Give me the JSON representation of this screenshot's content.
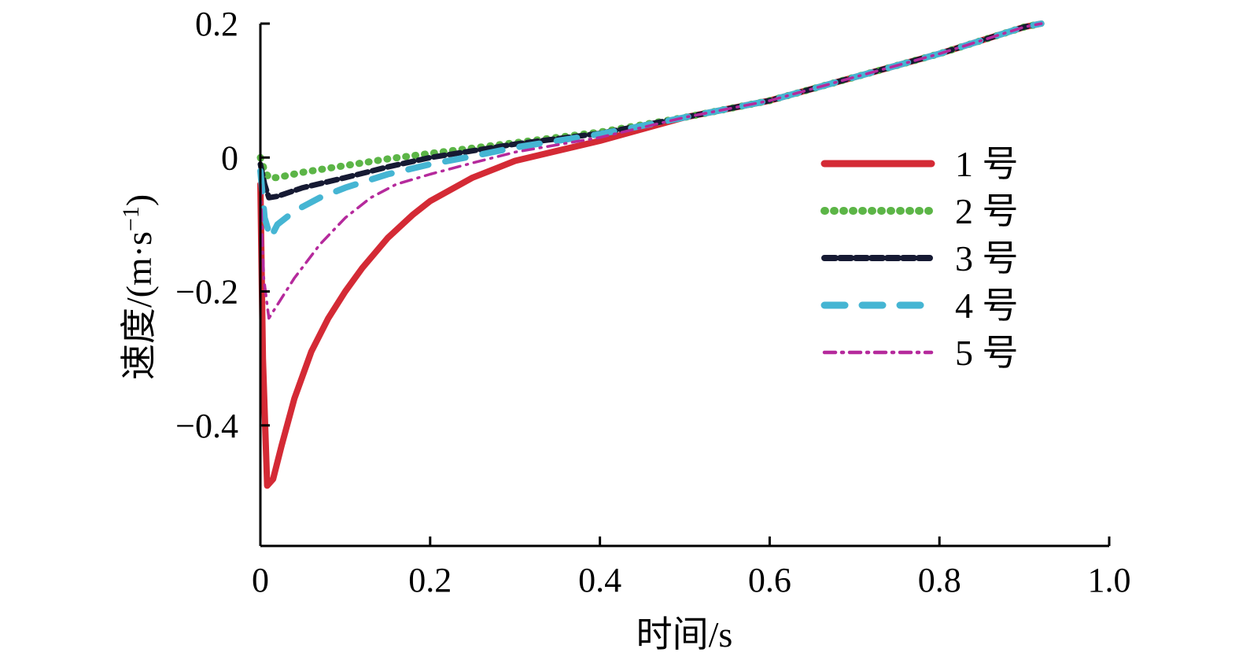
{
  "chart_data": {
    "type": "line",
    "title": "",
    "xlabel": "时间/s",
    "ylabel": "速度/(m·s",
    "ylabel_sup": "−1",
    "ylabel_close": ")",
    "xlim": [
      0,
      1.0
    ],
    "ylim": [
      -0.58,
      0.2
    ],
    "xticks": [
      0,
      0.2,
      0.4,
      0.6,
      0.8,
      1.0
    ],
    "xtick_labels": [
      "0",
      "0.2",
      "0.4",
      "0.6",
      "0.8",
      "1.0"
    ],
    "yticks": [
      -0.4,
      -0.2,
      0,
      0.2
    ],
    "ytick_labels": [
      "−0.4",
      "−0.2",
      "0",
      "0.2"
    ],
    "grid": false,
    "legend_position": "right",
    "series": [
      {
        "name": "1 号",
        "color": "#d42a35",
        "style": "solid",
        "x": [
          0,
          0.003,
          0.008,
          0.015,
          0.025,
          0.04,
          0.06,
          0.08,
          0.1,
          0.12,
          0.15,
          0.18,
          0.2,
          0.25,
          0.3,
          0.35,
          0.4,
          0.5,
          0.6,
          0.7,
          0.8,
          0.9,
          0.92
        ],
        "y": [
          -0.04,
          -0.3,
          -0.49,
          -0.48,
          -0.43,
          -0.36,
          -0.29,
          -0.24,
          -0.2,
          -0.165,
          -0.12,
          -0.085,
          -0.065,
          -0.03,
          -0.005,
          0.01,
          0.025,
          0.06,
          0.085,
          0.12,
          0.155,
          0.195,
          0.2
        ]
      },
      {
        "name": "2 号",
        "color": "#5cb547",
        "style": "dotted",
        "x": [
          0,
          0.005,
          0.01,
          0.02,
          0.05,
          0.1,
          0.15,
          0.2,
          0.25,
          0.3,
          0.4,
          0.5,
          0.6,
          0.7,
          0.8,
          0.9,
          0.92
        ],
        "y": [
          0,
          -0.02,
          -0.03,
          -0.03,
          -0.022,
          -0.012,
          -0.002,
          0.006,
          0.014,
          0.022,
          0.038,
          0.06,
          0.085,
          0.12,
          0.155,
          0.195,
          0.2
        ]
      },
      {
        "name": "3 号",
        "color": "#161a33",
        "style": "dashed",
        "x": [
          0,
          0.005,
          0.01,
          0.02,
          0.05,
          0.1,
          0.15,
          0.2,
          0.25,
          0.3,
          0.4,
          0.5,
          0.6,
          0.7,
          0.8,
          0.9,
          0.92
        ],
        "y": [
          -0.01,
          -0.04,
          -0.06,
          -0.058,
          -0.045,
          -0.03,
          -0.014,
          0,
          0.01,
          0.02,
          0.036,
          0.06,
          0.085,
          0.12,
          0.155,
          0.195,
          0.2
        ]
      },
      {
        "name": "4 号",
        "color": "#45b5d3",
        "style": "long-dash",
        "x": [
          0,
          0.005,
          0.012,
          0.02,
          0.04,
          0.07,
          0.1,
          0.15,
          0.2,
          0.25,
          0.3,
          0.4,
          0.5,
          0.6,
          0.7,
          0.8,
          0.9,
          0.92
        ],
        "y": [
          -0.02,
          -0.09,
          -0.12,
          -0.1,
          -0.08,
          -0.06,
          -0.045,
          -0.025,
          -0.01,
          0.002,
          0.015,
          0.035,
          0.06,
          0.085,
          0.12,
          0.155,
          0.195,
          0.2
        ]
      },
      {
        "name": "5 号",
        "color": "#b52a9c",
        "style": "dash-dot",
        "x": [
          0,
          0.004,
          0.01,
          0.02,
          0.04,
          0.07,
          0.1,
          0.13,
          0.16,
          0.2,
          0.25,
          0.3,
          0.4,
          0.5,
          0.6,
          0.7,
          0.8,
          0.9,
          0.92
        ],
        "y": [
          -0.04,
          -0.18,
          -0.24,
          -0.22,
          -0.18,
          -0.13,
          -0.09,
          -0.06,
          -0.04,
          -0.025,
          -0.008,
          0.008,
          0.03,
          0.06,
          0.085,
          0.12,
          0.155,
          0.195,
          0.2
        ]
      }
    ]
  }
}
